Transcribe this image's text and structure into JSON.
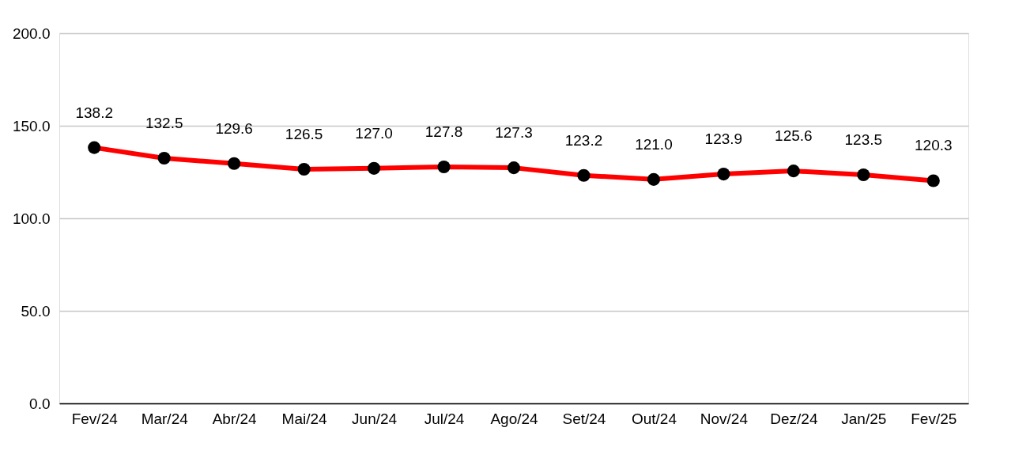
{
  "chart_data": {
    "type": "line",
    "categories": [
      "Fev/24",
      "Mar/24",
      "Abr/24",
      "Mai/24",
      "Jun/24",
      "Jul/24",
      "Ago/24",
      "Set/24",
      "Out/24",
      "Nov/24",
      "Dez/24",
      "Jan/25",
      "Fev/25"
    ],
    "series": [
      {
        "color": "#ff0000",
        "values": [
          138.2,
          132.5,
          129.6,
          126.5,
          127.0,
          127.8,
          127.3,
          123.2,
          121.0,
          123.9,
          125.6,
          123.5,
          120.3
        ],
        "value_labels": [
          "138.2",
          "132.5",
          "129.6",
          "126.5",
          "127.0",
          "127.8",
          "127.3",
          "123.2",
          "121.0",
          "123.9",
          "125.6",
          "123.5",
          "120.3"
        ]
      }
    ],
    "ylim": [
      0,
      200
    ],
    "yticks": [
      {
        "value": 0,
        "label": "0.0"
      },
      {
        "value": 50,
        "label": "50.0"
      },
      {
        "value": 100,
        "label": "100.0"
      },
      {
        "value": 150,
        "label": "150.0"
      },
      {
        "value": 200,
        "label": "200.0"
      }
    ],
    "grid": "y",
    "marker": "circle",
    "line_style": "solid"
  }
}
